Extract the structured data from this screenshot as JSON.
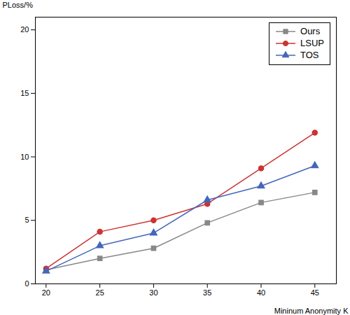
{
  "chart_data": {
    "type": "line",
    "xlabel": "Mininum Anonymity K",
    "ylabel": "PLoss/%",
    "x": [
      20,
      25,
      30,
      35,
      40,
      45
    ],
    "series": [
      {
        "name": "Ours",
        "color": "#888888",
        "marker": "square",
        "values": [
          1.1,
          2.0,
          2.8,
          4.8,
          6.4,
          7.2
        ]
      },
      {
        "name": "LSUP",
        "color": "#cc3333",
        "marker": "circle",
        "values": [
          1.2,
          4.1,
          5.0,
          6.3,
          9.1,
          11.9
        ]
      },
      {
        "name": "TOS",
        "color": "#4466bb",
        "marker": "triangle",
        "values": [
          1.0,
          3.0,
          4.0,
          6.6,
          7.7,
          9.3
        ]
      }
    ],
    "xlim": [
      19,
      47
    ],
    "ylim": [
      0,
      21
    ],
    "xticks": [
      20,
      25,
      30,
      35,
      40,
      45
    ],
    "yticks": [
      0,
      5,
      10,
      15,
      20
    ],
    "legend": "upper right",
    "grid": false
  }
}
